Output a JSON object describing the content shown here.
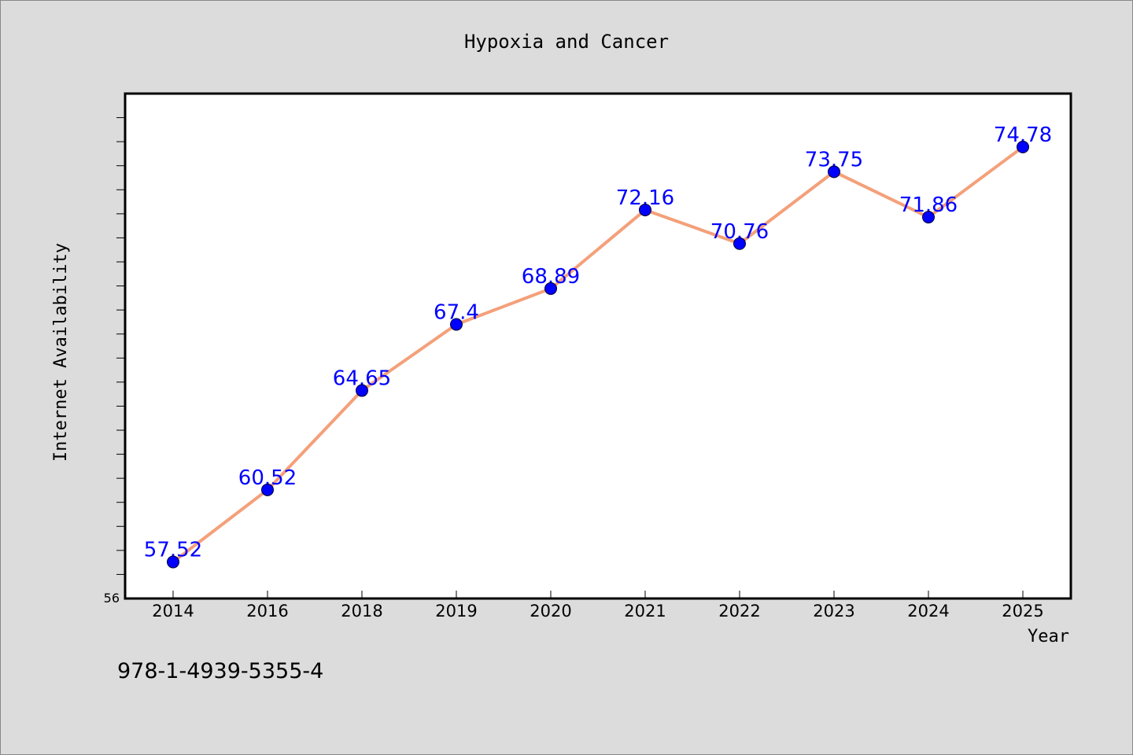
{
  "chart_data": {
    "type": "line",
    "title": "Hypoxia and Cancer",
    "xlabel": "Year",
    "ylabel": "Internet Availability",
    "categories": [
      "2014",
      "2016",
      "2018",
      "2019",
      "2020",
      "2021",
      "2022",
      "2023",
      "2024",
      "2025"
    ],
    "series": [
      {
        "values": [
          57.52,
          60.52,
          64.65,
          67.4,
          68.89,
          72.16,
          70.76,
          73.75,
          71.86,
          74.78
        ]
      }
    ],
    "data_labels": [
      "57.52",
      "60.52",
      "64.65",
      "67.4",
      "68.89",
      "72.16",
      "70.76",
      "73.75",
      "71.86",
      "74.78"
    ],
    "ylim": [
      56,
      77
    ],
    "y_tick_labels": [
      "56"
    ],
    "grid": false,
    "legend": false,
    "colors": {
      "line": "#f4a07a",
      "marker": "#0000ff",
      "data_label": "#0000ff",
      "background": "#dcdcdc",
      "plot_background": "#ffffff"
    }
  },
  "footnote": "978-1-4939-5355-4"
}
